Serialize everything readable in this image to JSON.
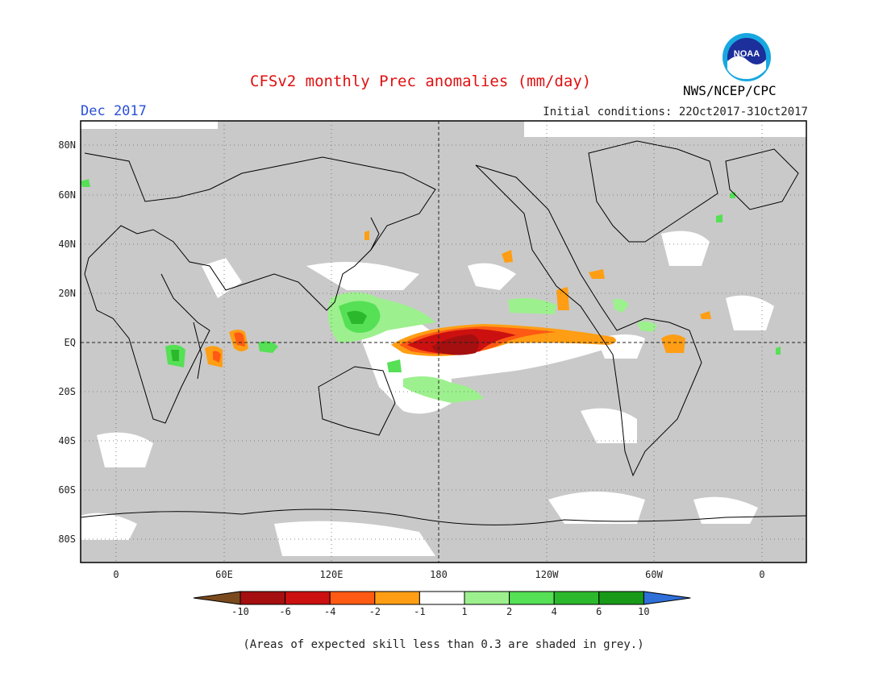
{
  "header": {
    "title": "CFSv2 monthly Prec anomalies (mm/day)",
    "month": "Dec 2017",
    "initial_conditions": "Initial conditions: 22Oct2017-31Oct2017",
    "agency": "NWS/NCEP/CPC",
    "logo_text": "NOAA"
  },
  "axes": {
    "lat_labels": [
      "80N",
      "60N",
      "40N",
      "20N",
      "EQ",
      "20S",
      "40S",
      "60S",
      "80S"
    ],
    "lon_labels": [
      "0",
      "60E",
      "120E",
      "180",
      "120W",
      "60W",
      "0"
    ]
  },
  "colorbar": {
    "ticks": [
      "-10",
      "-6",
      "-4",
      "-2",
      "-1",
      "1",
      "2",
      "4",
      "6",
      "10"
    ],
    "colors": [
      "#7a4a1e",
      "#a50f0f",
      "#cc1010",
      "#ff5a14",
      "#ff9e14",
      "#ffffff",
      "#9df08e",
      "#55e055",
      "#2cb82c",
      "#189a18",
      "#2f6fd8"
    ]
  },
  "footnote": "(Areas of expected skill less than 0.3 are shaded in grey.)"
}
